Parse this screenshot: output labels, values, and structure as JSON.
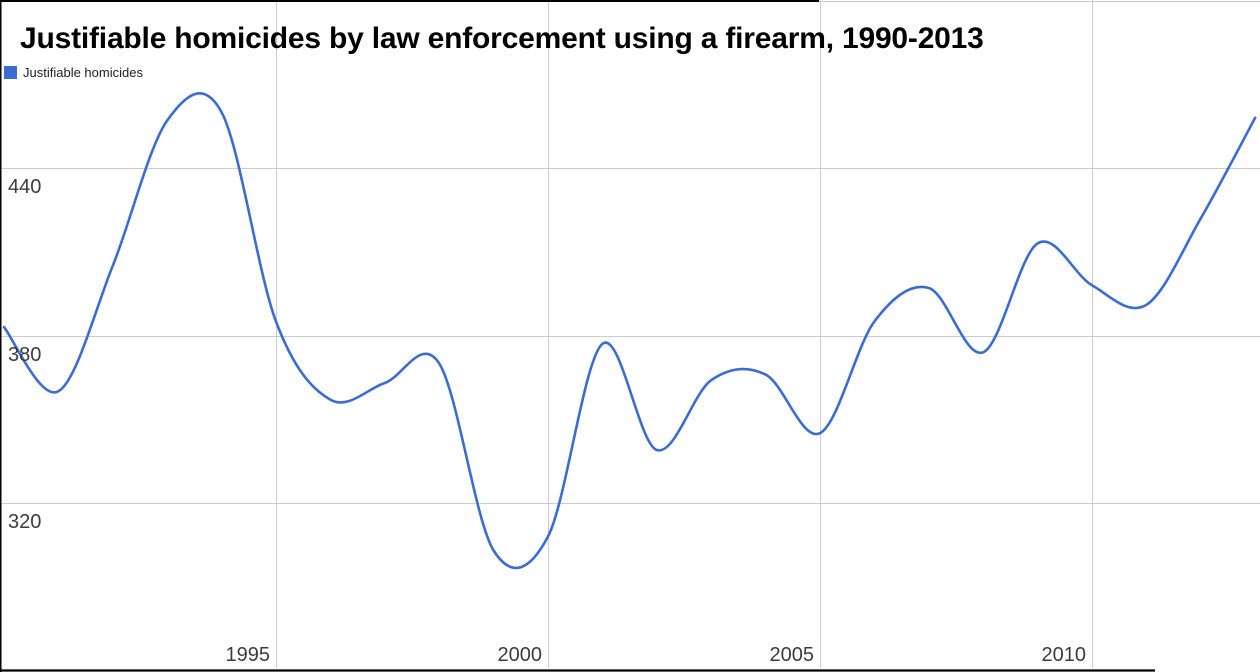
{
  "title": {
    "text": "Justifiable homicides by law enforcement using a firearm, 1990-2013"
  },
  "legend": {
    "label": "Justifiable homicides",
    "swatch_color": "#3B6CD4"
  },
  "colors": {
    "series_line": "#3B6CD4",
    "gridline": "#cccccc",
    "axis_text": "#3c3c3c",
    "border_line": "#000000",
    "background": "#ffffff"
  },
  "chart_data": {
    "type": "line",
    "title": "Justifiable homicides by law enforcement using a firearm, 1990-2013",
    "smooth": true,
    "grid": true,
    "legend_position": "top-left",
    "xlabel": "",
    "ylabel": "",
    "x_domain": [
      1990,
      2013
    ],
    "y_axis_ticks": [
      440,
      380,
      320
    ],
    "y_gridlines": [
      500,
      440,
      380,
      320
    ],
    "x_axis_ticks": [
      1995,
      2000,
      2005,
      2010
    ],
    "x": [
      1990,
      1991,
      1992,
      1993,
      1994,
      1995,
      1996,
      1997,
      1998,
      1999,
      2000,
      2001,
      2002,
      2003,
      2004,
      2005,
      2006,
      2007,
      2008,
      2009,
      2010,
      2011,
      2012,
      2013
    ],
    "series": [
      {
        "name": "Justifiable homicides",
        "color": "#3B6CD4",
        "values": [
          383,
          360,
          405,
          457,
          460,
          385,
          357,
          363,
          370,
          303,
          308,
          377,
          339,
          364,
          366,
          345,
          385,
          397,
          374,
          413,
          398,
          391,
          422,
          458
        ]
      }
    ]
  }
}
